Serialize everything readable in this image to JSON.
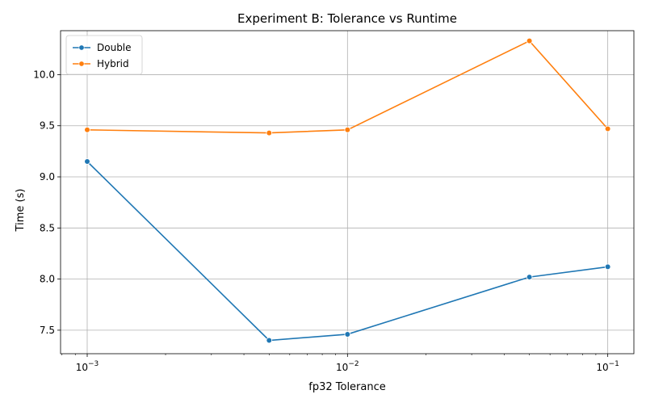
{
  "chart_data": {
    "type": "line",
    "title": "Experiment B: Tolerance vs Runtime",
    "xlabel": "fp32 Tolerance",
    "ylabel": "Time (s)",
    "x_scale": "log",
    "x": [
      0.001,
      0.005,
      0.01,
      0.05,
      0.1
    ],
    "xlim": [
      0.00079,
      0.126
    ],
    "ylim": [
      7.27,
      10.43
    ],
    "x_ticks": [
      {
        "value": 0.001,
        "base": "10",
        "exp": "−3"
      },
      {
        "value": 0.01,
        "base": "10",
        "exp": "−2"
      },
      {
        "value": 0.1,
        "base": "10",
        "exp": "−1"
      }
    ],
    "y_ticks": [
      7.5,
      8.0,
      8.5,
      9.0,
      9.5,
      10.0
    ],
    "y_tick_labels": [
      "7.5",
      "8.0",
      "8.5",
      "9.0",
      "9.5",
      "10.0"
    ],
    "grid": true,
    "legend_position": "top-left",
    "series": [
      {
        "name": "Double",
        "color": "#1f77b4",
        "values": [
          9.15,
          7.4,
          7.46,
          8.02,
          8.12
        ]
      },
      {
        "name": "Hybrid",
        "color": "#ff7f0e",
        "values": [
          9.46,
          9.43,
          9.46,
          10.33,
          9.47
        ]
      }
    ]
  }
}
